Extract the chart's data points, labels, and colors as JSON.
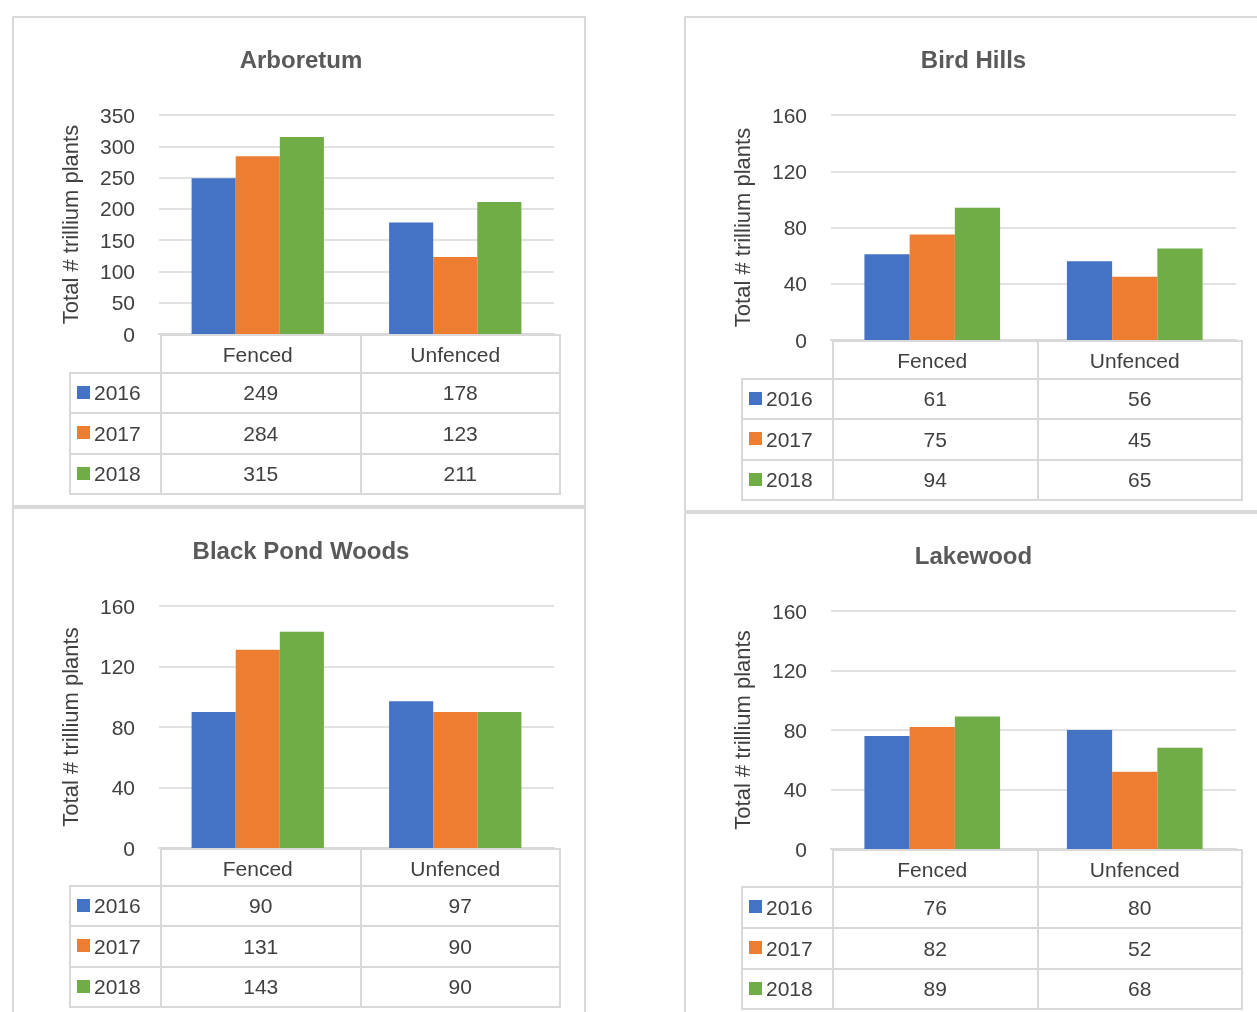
{
  "chart_data": [
    {
      "type": "bar",
      "title": "Arboretum",
      "ylabel": "Total # trillium plants",
      "categories": [
        "Fenced",
        "Unfenced"
      ],
      "series": [
        {
          "name": "2016",
          "color": "#4472c4",
          "values": [
            249,
            178
          ]
        },
        {
          "name": "2017",
          "color": "#ed7d31",
          "values": [
            284,
            123
          ]
        },
        {
          "name": "2018",
          "color": "#70ad47",
          "values": [
            315,
            211
          ]
        }
      ],
      "ylim": [
        0,
        350
      ],
      "yticks": [
        0,
        50,
        100,
        150,
        200,
        250,
        300,
        350
      ],
      "grid": "y",
      "legend": "bottom left",
      "data_labels": true
    },
    {
      "type": "bar",
      "title": "Bird Hills",
      "ylabel": "Total # trillium plants",
      "categories": [
        "Fenced",
        "Unfenced"
      ],
      "series": [
        {
          "name": "2016",
          "color": "#4472c4",
          "values": [
            61,
            56
          ]
        },
        {
          "name": "2017",
          "color": "#ed7d31",
          "values": [
            75,
            45
          ]
        },
        {
          "name": "2018",
          "color": "#70ad47",
          "values": [
            94,
            65
          ]
        }
      ],
      "ylim": [
        0,
        160
      ],
      "yticks": [
        0,
        40,
        80,
        120,
        160
      ],
      "grid": "y",
      "legend": "bottom left",
      "data_labels": true
    },
    {
      "type": "bar",
      "title": "Black Pond Woods",
      "ylabel": "Total # trillium plants",
      "categories": [
        "Fenced",
        "Unfenced"
      ],
      "series": [
        {
          "name": "2016",
          "color": "#4472c4",
          "values": [
            90,
            97
          ]
        },
        {
          "name": "2017",
          "color": "#ed7d31",
          "values": [
            131,
            90
          ]
        },
        {
          "name": "2018",
          "color": "#70ad47",
          "values": [
            143,
            90
          ]
        }
      ],
      "ylim": [
        0,
        160
      ],
      "yticks": [
        0,
        40,
        80,
        120,
        160
      ],
      "grid": "y",
      "legend": "bottom left",
      "data_labels": true
    },
    {
      "type": "bar",
      "title": "Lakewood",
      "ylabel": "Total # trillium plants",
      "categories": [
        "Fenced",
        "Unfenced"
      ],
      "series": [
        {
          "name": "2016",
          "color": "#4472c4",
          "values": [
            76,
            80
          ]
        },
        {
          "name": "2017",
          "color": "#ed7d31",
          "values": [
            82,
            52
          ]
        },
        {
          "name": "2018",
          "color": "#70ad47",
          "values": [
            89,
            68
          ]
        }
      ],
      "ylim": [
        0,
        160
      ],
      "yticks": [
        0,
        40,
        80,
        120,
        160
      ],
      "grid": "y",
      "legend": "bottom left",
      "data_labels": true
    }
  ]
}
